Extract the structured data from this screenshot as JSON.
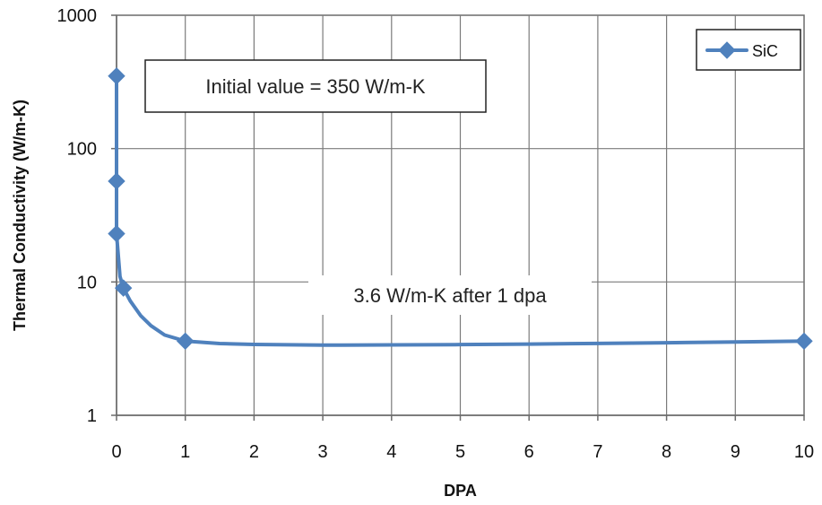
{
  "chart_data": {
    "type": "line",
    "title": "",
    "xlabel": "DPA",
    "ylabel": "Thermal Conductivity (W/m-K)",
    "xlim": [
      0,
      10
    ],
    "ylim": [
      1,
      1000
    ],
    "yscale": "log",
    "grid": true,
    "legend_position": "top-right",
    "x_ticks": [
      0,
      1,
      2,
      3,
      4,
      5,
      6,
      7,
      8,
      9,
      10
    ],
    "x_tick_labels": [
      "0",
      "1",
      "2",
      "3",
      "4",
      "5",
      "6",
      "7",
      "8",
      "9",
      "10"
    ],
    "y_ticks": [
      1,
      10,
      100,
      1000
    ],
    "y_tick_labels": [
      "1",
      "10",
      "100",
      "1000"
    ],
    "series": [
      {
        "name": "SiC",
        "color": "#4f81bd",
        "marker": "diamond",
        "x": [
          0.0,
          0.0,
          0.0,
          0.1,
          1.0,
          10.0
        ],
        "y": [
          350,
          57,
          23,
          9,
          3.6,
          3.6
        ],
        "curve_x": [
          0.0,
          0.0,
          0.0,
          0.05,
          0.1,
          0.2,
          0.35,
          0.5,
          0.7,
          1.0,
          1.5,
          2.0,
          3.0,
          4.0,
          5.0,
          6.0,
          7.0,
          8.0,
          9.0,
          10.0
        ],
        "curve_y": [
          350,
          57,
          23,
          11,
          9,
          7.2,
          5.6,
          4.7,
          4.0,
          3.6,
          3.45,
          3.4,
          3.36,
          3.37,
          3.39,
          3.42,
          3.46,
          3.5,
          3.55,
          3.6
        ]
      }
    ],
    "annotations": [
      {
        "text": "Initial value = 350 W/m-K",
        "boxed": true
      },
      {
        "text": "3.6 W/m-K after 1 dpa",
        "boxed": false
      }
    ]
  }
}
